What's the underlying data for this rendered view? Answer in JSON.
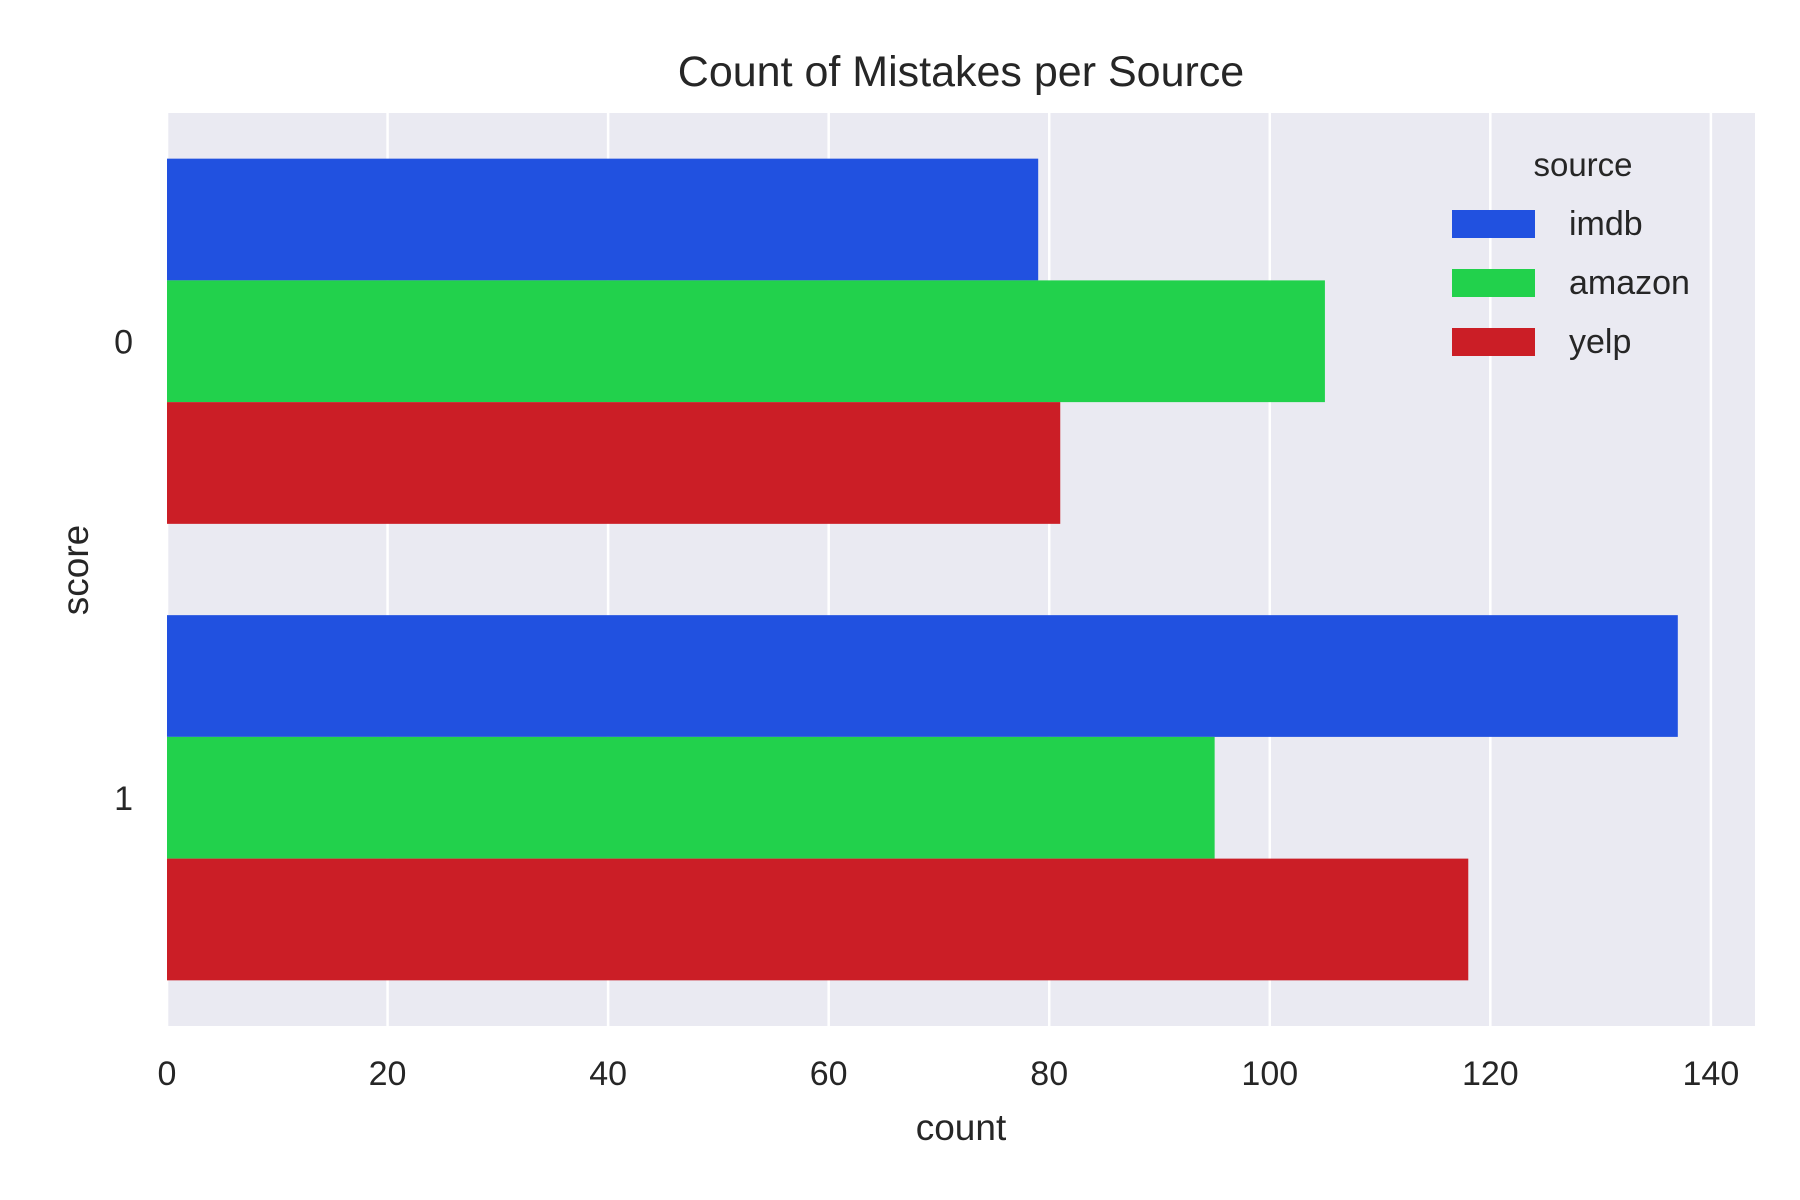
{
  "chart_data": {
    "type": "bar",
    "orientation": "horizontal",
    "title": "Count of Mistakes per Source",
    "xlabel": "count",
    "ylabel": "score",
    "categories": [
      "0",
      "1"
    ],
    "series": [
      {
        "name": "imdb",
        "color": "#2151e0",
        "values": [
          79,
          137
        ]
      },
      {
        "name": "amazon",
        "color": "#22d14c",
        "values": [
          105,
          95
        ]
      },
      {
        "name": "yelp",
        "color": "#cb1e26",
        "values": [
          81,
          118
        ]
      }
    ],
    "xlim": [
      0,
      144
    ],
    "xticks": [
      "0",
      "20",
      "40",
      "60",
      "80",
      "100",
      "120",
      "140"
    ],
    "xtick_values": [
      0,
      20,
      40,
      60,
      80,
      100,
      120,
      140
    ],
    "grid": true,
    "legend": {
      "title": "source",
      "position": "top-right"
    },
    "background": "#eaeaf2"
  }
}
